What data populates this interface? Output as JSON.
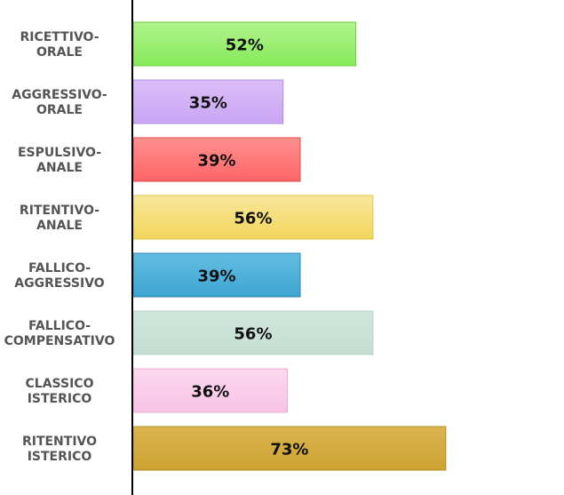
{
  "chart_data": {
    "type": "bar",
    "orientation": "horizontal",
    "categories": [
      [
        "RICETTIVO-",
        "ORALE"
      ],
      [
        "AGGRESSIVO-",
        "ORALE"
      ],
      [
        "ESPULSIVO-",
        "ANALE"
      ],
      [
        "RITENTIVO-",
        "ANALE"
      ],
      [
        "FALLICO-",
        "AGGRESSIVO"
      ],
      [
        "FALLICO-",
        "COMPENSATIVO"
      ],
      [
        "CLASSICO",
        "ISTERICO"
      ],
      [
        "RITENTIVO",
        "ISTERICO"
      ]
    ],
    "values": [
      52,
      35,
      39,
      56,
      39,
      56,
      36,
      73
    ],
    "value_labels": [
      "52%",
      "35%",
      "39%",
      "56%",
      "39%",
      "56%",
      "36%",
      "73%"
    ],
    "bar_colors": [
      [
        "#b1f38d",
        "#86ea5a"
      ],
      [
        "#dcbdf8",
        "#c9a5f3"
      ],
      [
        "#ff8f8f",
        "#ff6666"
      ],
      [
        "#f8e79c",
        "#f2d65c"
      ],
      [
        "#64bee3",
        "#3ea5d1"
      ],
      [
        "#cfe6dd",
        "#c5ded3"
      ],
      [
        "#fcd9ef",
        "#f8c3e6"
      ],
      [
        "#dbb550",
        "#cda232"
      ]
    ],
    "bar_strokes": [
      "#6fd23e",
      "#b090e6",
      "#e04b4b",
      "#e2c64a",
      "#2a85ad",
      "#b9d6c9",
      "#ecaad5",
      "#b48b1e"
    ],
    "xlim": [
      0,
      100
    ],
    "grid": false,
    "legend": "none"
  }
}
